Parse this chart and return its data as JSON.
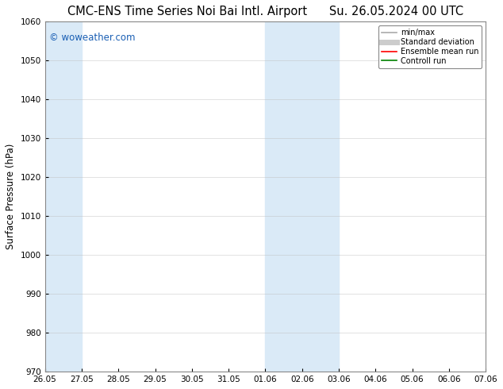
{
  "title_left": "CMC-ENS Time Series Noi Bai Intl. Airport",
  "title_right": "Su. 26.05.2024 00 UTC",
  "ylabel": "Surface Pressure (hPa)",
  "ylim": [
    970,
    1060
  ],
  "yticks": [
    970,
    980,
    990,
    1000,
    1010,
    1020,
    1030,
    1040,
    1050,
    1060
  ],
  "xtick_labels": [
    "26.05",
    "27.05",
    "28.05",
    "29.05",
    "30.05",
    "31.05",
    "01.06",
    "02.06",
    "03.06",
    "04.06",
    "05.06",
    "06.06",
    "07.06"
  ],
  "xtick_positions": [
    0,
    1,
    2,
    3,
    4,
    5,
    6,
    7,
    8,
    9,
    10,
    11,
    12
  ],
  "shaded_bands": [
    {
      "x_start": 0,
      "x_end": 1
    },
    {
      "x_start": 6,
      "x_end": 7
    },
    {
      "x_start": 7,
      "x_end": 8
    }
  ],
  "shade_color": "#daeaf7",
  "background_color": "#ffffff",
  "watermark_text": "© woweather.com",
  "watermark_color": "#1a5fb4",
  "legend_items": [
    {
      "label": "min/max",
      "color": "#aaaaaa",
      "lw": 1.2,
      "style": "solid"
    },
    {
      "label": "Standard deviation",
      "color": "#cccccc",
      "lw": 5,
      "style": "solid"
    },
    {
      "label": "Ensemble mean run",
      "color": "#ff0000",
      "lw": 1.2,
      "style": "solid"
    },
    {
      "label": "Controll run",
      "color": "#008000",
      "lw": 1.2,
      "style": "solid"
    }
  ],
  "title_fontsize": 10.5,
  "axis_fontsize": 8.5,
  "tick_fontsize": 7.5,
  "legend_fontsize": 7,
  "grid_color": "#bbbbbb",
  "grid_alpha": 0.6,
  "watermark_fontsize": 8.5
}
